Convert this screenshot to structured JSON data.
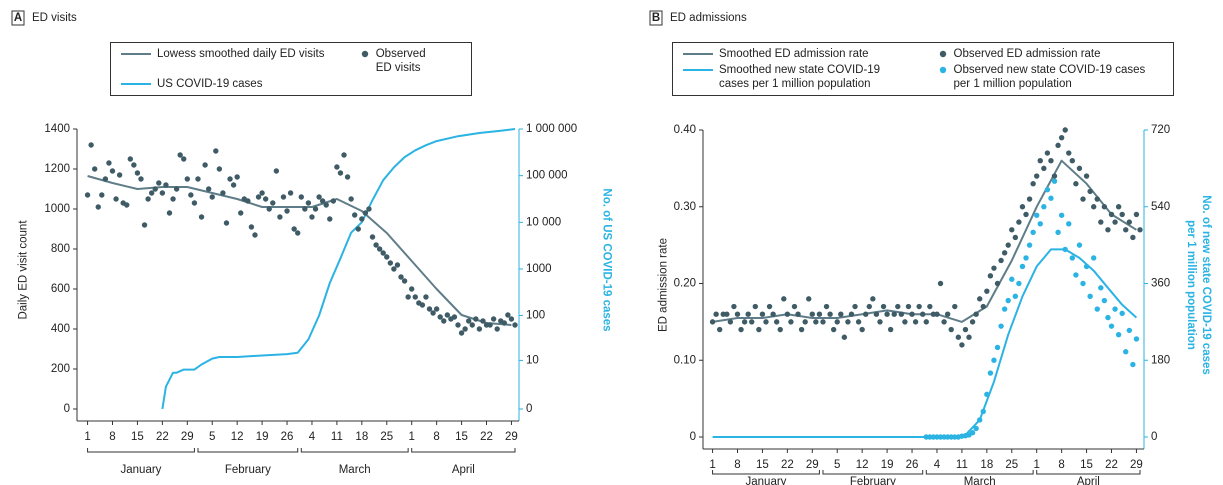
{
  "chart_data": [
    {
      "type": "scatter_line",
      "panel": "A",
      "title": "ED visits",
      "ylabel": "Daily ED visit count",
      "y2label": [
        "No. of US COVID-19 cases"
      ],
      "xlim": [
        0,
        121
      ],
      "xticks": [
        1,
        8,
        15,
        22,
        29,
        {
          "value": 36,
          "label": "5"
        },
        {
          "value": 43,
          "label": "12"
        },
        {
          "value": 50,
          "label": "19"
        },
        {
          "value": 57,
          "label": "26"
        },
        {
          "value": 64,
          "label": "4"
        },
        {
          "value": 71,
          "label": "11"
        },
        {
          "value": 78,
          "label": "18"
        },
        {
          "value": 85,
          "label": "25"
        },
        {
          "value": 92,
          "label": "1"
        },
        {
          "value": 99,
          "label": "8"
        },
        {
          "value": 106,
          "label": "15"
        },
        {
          "value": 113,
          "label": "22"
        },
        {
          "value": 120,
          "label": "29"
        }
      ],
      "month_groups": [
        {
          "label": "January",
          "from": 1,
          "to": 31
        },
        {
          "label": "February",
          "from": 32,
          "to": 60
        },
        {
          "label": "March",
          "from": 61,
          "to": 91
        },
        {
          "label": "April",
          "from": 92,
          "to": 121
        }
      ],
      "ylim": [
        0,
        1400
      ],
      "yticks": [
        0,
        200,
        400,
        600,
        800,
        1000,
        1200,
        1400
      ],
      "y2lim": [
        0,
        1000000
      ],
      "y2scale": "symlog",
      "y2ticks": [
        0,
        10,
        100,
        1000,
        {
          "value": 10000,
          "label": "10 000"
        },
        {
          "value": 100000,
          "label": "100 000"
        },
        {
          "value": 1000000,
          "label": "1 000 000"
        }
      ],
      "y2color": "#2bb3e3",
      "series": [
        {
          "name": "Lowess smoothed daily ED visits",
          "kind": "line",
          "color": "#5f7d88",
          "axis": "y",
          "x": [
            1,
            8,
            15,
            22,
            29,
            36,
            43,
            50,
            57,
            64,
            71,
            78,
            85,
            92,
            99,
            106,
            113,
            120
          ],
          "values": [
            1165,
            1130,
            1100,
            1110,
            1110,
            1080,
            1050,
            1010,
            1010,
            1010,
            1050,
            990,
            880,
            740,
            600,
            470,
            430,
            420
          ]
        },
        {
          "name": "US COVID-19 cases",
          "kind": "line",
          "color": "#2bb3e3",
          "axis": "y2",
          "x": [
            22,
            23,
            25,
            26,
            28,
            31,
            33,
            36,
            38,
            43,
            50,
            57,
            60,
            63,
            66,
            69,
            72,
            75,
            78,
            81,
            84,
            87,
            90,
            93,
            96,
            99,
            105,
            111,
            117,
            121
          ],
          "values": [
            0,
            2,
            5,
            5,
            6,
            6,
            8,
            11,
            12,
            12,
            13,
            14,
            15,
            30,
            100,
            500,
            1700,
            6000,
            10000,
            30000,
            80000,
            150000,
            250000,
            350000,
            450000,
            550000,
            700000,
            820000,
            920000,
            1000000
          ]
        },
        {
          "name": "Observed ED visits",
          "kind": "dots",
          "color": "#3f5c66",
          "axis": "y",
          "x": [
            1,
            2,
            3,
            4,
            5,
            6,
            7,
            8,
            9,
            10,
            11,
            12,
            13,
            14,
            15,
            16,
            17,
            18,
            19,
            20,
            21,
            22,
            23,
            24,
            25,
            26,
            27,
            28,
            29,
            30,
            31,
            32,
            33,
            34,
            35,
            36,
            37,
            38,
            39,
            40,
            41,
            42,
            43,
            44,
            45,
            46,
            47,
            48,
            49,
            50,
            51,
            52,
            53,
            54,
            55,
            56,
            57,
            58,
            59,
            60,
            61,
            62,
            63,
            64,
            65,
            66,
            67,
            68,
            69,
            70,
            71,
            72,
            73,
            74,
            75,
            76,
            77,
            78,
            79,
            80,
            81,
            82,
            83,
            84,
            85,
            86,
            87,
            88,
            89,
            90,
            91,
            92,
            93,
            94,
            95,
            96,
            97,
            98,
            99,
            100,
            101,
            102,
            103,
            104,
            105,
            106,
            107,
            108,
            109,
            110,
            111,
            112,
            113,
            114,
            115,
            116,
            117,
            118,
            119,
            120,
            121
          ],
          "values": [
            1070,
            1320,
            1200,
            1010,
            1070,
            1150,
            1230,
            1190,
            1050,
            1170,
            1030,
            1020,
            1250,
            1220,
            1180,
            1150,
            920,
            1050,
            1080,
            1100,
            1130,
            1080,
            1120,
            980,
            1050,
            1100,
            1270,
            1250,
            1150,
            1070,
            1030,
            1150,
            960,
            1220,
            1100,
            1060,
            1290,
            1200,
            1080,
            930,
            1150,
            1120,
            1160,
            980,
            1050,
            1040,
            910,
            870,
            1060,
            1080,
            1050,
            1000,
            1030,
            1190,
            960,
            1060,
            990,
            1080,
            900,
            880,
            1060,
            1000,
            1030,
            960,
            1000,
            1060,
            1040,
            1020,
            950,
            1040,
            1210,
            1180,
            1270,
            1160,
            1050,
            970,
            900,
            950,
            980,
            1000,
            860,
            820,
            800,
            780,
            760,
            730,
            700,
            720,
            660,
            640,
            560,
            600,
            560,
            530,
            520,
            560,
            500,
            480,
            500,
            460,
            440,
            470,
            450,
            460,
            420,
            380,
            400,
            440,
            420,
            450,
            400,
            440,
            420,
            420,
            450,
            400,
            440,
            430,
            470,
            450,
            420
          ]
        }
      ]
    },
    {
      "type": "scatter_line",
      "panel": "B",
      "title": "ED admissions",
      "ylabel": "ED admission rate",
      "y2label": [
        "No. of new state COVID-19 cases",
        "per 1 million population"
      ],
      "xlim": [
        0,
        121
      ],
      "xticks": [
        1,
        8,
        15,
        22,
        29,
        {
          "value": 36,
          "label": "5"
        },
        {
          "value": 43,
          "label": "12"
        },
        {
          "value": 50,
          "label": "19"
        },
        {
          "value": 57,
          "label": "26"
        },
        {
          "value": 64,
          "label": "4"
        },
        {
          "value": 71,
          "label": "11"
        },
        {
          "value": 78,
          "label": "18"
        },
        {
          "value": 85,
          "label": "25"
        },
        {
          "value": 92,
          "label": "1"
        },
        {
          "value": 99,
          "label": "8"
        },
        {
          "value": 106,
          "label": "15"
        },
        {
          "value": 113,
          "label": "22"
        },
        {
          "value": 120,
          "label": "29"
        }
      ],
      "month_groups": [
        {
          "label": "January",
          "from": 1,
          "to": 31
        },
        {
          "label": "February",
          "from": 32,
          "to": 60
        },
        {
          "label": "March",
          "from": 61,
          "to": 91
        },
        {
          "label": "April",
          "from": 92,
          "to": 121
        }
      ],
      "ylim": [
        0,
        0.4
      ],
      "yticks": [
        0,
        {
          "value": 0.1,
          "label": "0.10"
        },
        {
          "value": 0.2,
          "label": "0.20"
        },
        {
          "value": 0.3,
          "label": "0.30"
        },
        {
          "value": 0.4,
          "label": "0.40"
        }
      ],
      "y2lim": [
        0,
        720
      ],
      "y2ticks": [
        0,
        180,
        360,
        540,
        720
      ],
      "y2color": "#2bb3e3",
      "series": [
        {
          "name": "Smoothed ED admission rate",
          "kind": "line",
          "color": "#5f7d88",
          "axis": "y",
          "x": [
            1,
            8,
            15,
            22,
            29,
            36,
            43,
            50,
            57,
            64,
            71,
            78,
            85,
            92,
            99,
            106,
            113,
            120
          ],
          "values": [
            0.15,
            0.155,
            0.155,
            0.16,
            0.155,
            0.155,
            0.16,
            0.165,
            0.16,
            0.16,
            0.15,
            0.17,
            0.23,
            0.3,
            0.36,
            0.33,
            0.29,
            0.27
          ]
        },
        {
          "name": "Smoothed new state COVID-19 cases per 1 million population",
          "kind": "line",
          "color": "#2bb3e3",
          "axis": "y2",
          "x": [
            1,
            60,
            64,
            68,
            72,
            76,
            80,
            84,
            88,
            92,
            96,
            100,
            104,
            108,
            112,
            116,
            120
          ],
          "values": [
            0,
            0,
            0,
            0,
            5,
            40,
            130,
            240,
            330,
            400,
            440,
            440,
            420,
            390,
            350,
            310,
            280
          ]
        },
        {
          "name": "Observed ED admission rate",
          "kind": "dots",
          "color": "#3f5c66",
          "axis": "y",
          "x": [
            1,
            2,
            3,
            4,
            5,
            6,
            7,
            8,
            9,
            10,
            11,
            12,
            13,
            14,
            15,
            16,
            17,
            18,
            19,
            20,
            21,
            22,
            23,
            24,
            25,
            26,
            27,
            28,
            29,
            30,
            31,
            32,
            33,
            34,
            35,
            36,
            37,
            38,
            39,
            40,
            41,
            42,
            43,
            44,
            45,
            46,
            47,
            48,
            49,
            50,
            51,
            52,
            53,
            54,
            55,
            56,
            57,
            58,
            59,
            60,
            61,
            62,
            63,
            64,
            65,
            66,
            67,
            68,
            69,
            70,
            71,
            72,
            73,
            74,
            75,
            76,
            77,
            78,
            79,
            80,
            81,
            82,
            83,
            84,
            85,
            86,
            87,
            88,
            89,
            90,
            91,
            92,
            93,
            94,
            95,
            96,
            97,
            98,
            99,
            100,
            101,
            102,
            103,
            104,
            105,
            106,
            107,
            108,
            109,
            110,
            111,
            112,
            113,
            114,
            115,
            116,
            117,
            118,
            119,
            120,
            121
          ],
          "values": [
            0.15,
            0.16,
            0.14,
            0.16,
            0.16,
            0.15,
            0.17,
            0.16,
            0.14,
            0.15,
            0.16,
            0.15,
            0.17,
            0.14,
            0.16,
            0.15,
            0.17,
            0.16,
            0.15,
            0.14,
            0.18,
            0.16,
            0.15,
            0.17,
            0.16,
            0.14,
            0.15,
            0.18,
            0.16,
            0.15,
            0.16,
            0.15,
            0.17,
            0.16,
            0.14,
            0.15,
            0.16,
            0.13,
            0.15,
            0.16,
            0.17,
            0.15,
            0.14,
            0.16,
            0.17,
            0.18,
            0.16,
            0.15,
            0.17,
            0.16,
            0.14,
            0.16,
            0.17,
            0.16,
            0.15,
            0.17,
            0.16,
            0.15,
            0.17,
            0.16,
            0.15,
            0.17,
            0.16,
            0.16,
            0.2,
            0.15,
            0.16,
            0.14,
            0.17,
            0.13,
            0.12,
            0.14,
            0.13,
            0.15,
            0.16,
            0.18,
            0.17,
            0.19,
            0.21,
            0.22,
            0.2,
            0.23,
            0.24,
            0.25,
            0.27,
            0.26,
            0.28,
            0.3,
            0.29,
            0.31,
            0.33,
            0.34,
            0.36,
            0.35,
            0.37,
            0.36,
            0.34,
            0.38,
            0.39,
            0.4,
            0.37,
            0.36,
            0.33,
            0.35,
            0.31,
            0.34,
            0.32,
            0.3,
            0.31,
            0.28,
            0.3,
            0.27,
            0.29,
            0.28,
            0.3,
            0.29,
            0.27,
            0.28,
            0.26,
            0.29,
            0.27
          ]
        },
        {
          "name": "Observed new state COVID-19 cases per 1 million population",
          "kind": "dots",
          "color": "#2bb3e3",
          "axis": "y2",
          "x": [
            61,
            62,
            63,
            64,
            65,
            66,
            67,
            68,
            69,
            70,
            71,
            72,
            73,
            74,
            75,
            76,
            77,
            78,
            79,
            80,
            81,
            82,
            83,
            84,
            85,
            86,
            87,
            88,
            89,
            90,
            91,
            92,
            93,
            94,
            95,
            96,
            97,
            98,
            99,
            100,
            101,
            102,
            103,
            104,
            105,
            106,
            107,
            108,
            109,
            110,
            111,
            112,
            113,
            114,
            115,
            116,
            117,
            118,
            119,
            120
          ],
          "values": [
            0,
            0,
            0,
            0,
            0,
            0,
            0,
            0,
            0,
            0,
            2,
            3,
            5,
            10,
            20,
            40,
            60,
            100,
            150,
            180,
            210,
            260,
            300,
            320,
            370,
            330,
            360,
            400,
            420,
            450,
            480,
            520,
            500,
            540,
            580,
            560,
            600,
            480,
            520,
            440,
            500,
            420,
            380,
            450,
            360,
            400,
            330,
            420,
            300,
            350,
            320,
            280,
            260,
            300,
            240,
            290,
            200,
            250,
            170,
            230
          ]
        }
      ]
    }
  ]
}
